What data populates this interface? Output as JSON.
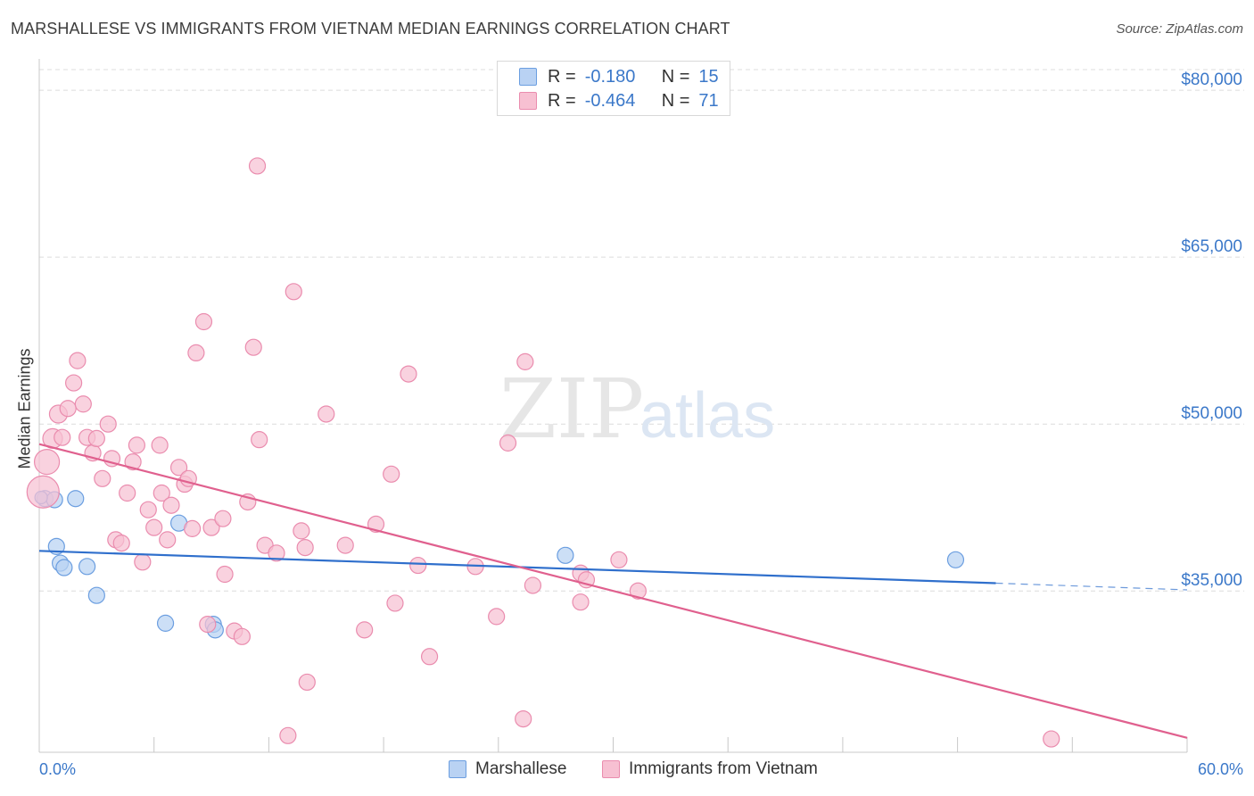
{
  "header": {
    "title": "MARSHALLESE VS IMMIGRANTS FROM VIETNAM MEDIAN EARNINGS CORRELATION CHART",
    "source": "Source: ZipAtlas.com"
  },
  "legend_top": {
    "rows": [
      {
        "r_label": "R =",
        "r_value": "-0.180",
        "n_label": "N =",
        "n_value": "15"
      },
      {
        "r_label": "R =",
        "r_value": "-0.464",
        "n_label": "N =",
        "n_value": "71"
      }
    ]
  },
  "legend_bottom": {
    "items": [
      "Marshallese",
      "Immigrants from Vietnam"
    ]
  },
  "watermark": {
    "part1": "ZIP",
    "part2": "atlas"
  },
  "colors": {
    "blue_fill": "#b9d2f3",
    "blue_stroke": "#6b9ee0",
    "blue_line": "#2f6fcc",
    "pink_fill": "#f7c0d2",
    "pink_stroke": "#ea8cae",
    "pink_line": "#e0608e",
    "axis_text": "#3b78c9",
    "grid": "#dcdcdc"
  },
  "chart_data": {
    "type": "scatter",
    "title": "MARSHALLESE VS IMMIGRANTS FROM VIETNAM MEDIAN EARNINGS CORRELATION CHART",
    "xlabel": "",
    "ylabel": "Median Earnings",
    "xlim": [
      0,
      60
    ],
    "ylim": [
      20500,
      82500
    ],
    "x_tick_labels": [
      "0.0%",
      "60.0%"
    ],
    "y_ticks": [
      35000,
      50000,
      65000,
      80000
    ],
    "y_tick_labels": [
      "$35,000",
      "$50,000",
      "$65,000",
      "$80,000"
    ],
    "grid": true,
    "legend_position": "bottom",
    "series": [
      {
        "name": "Marshallese",
        "color": "blue",
        "r": "-0.180",
        "n": "15",
        "trend": {
          "x0": 0,
          "y0": 38600,
          "x1": 50.0,
          "y1": 35700,
          "dash_to_x": 60,
          "dash_to_y": 35100
        },
        "points": [
          {
            "x": 0.3,
            "y": 43300,
            "s": 9
          },
          {
            "x": 0.8,
            "y": 43200,
            "s": 9
          },
          {
            "x": 1.9,
            "y": 43300,
            "s": 9
          },
          {
            "x": 0.9,
            "y": 39000,
            "s": 9
          },
          {
            "x": 1.1,
            "y": 37500,
            "s": 9
          },
          {
            "x": 1.3,
            "y": 37100,
            "s": 9
          },
          {
            "x": 2.5,
            "y": 37200,
            "s": 9
          },
          {
            "x": 3.0,
            "y": 34600,
            "s": 9
          },
          {
            "x": 7.3,
            "y": 41100,
            "s": 9
          },
          {
            "x": 6.6,
            "y": 32100,
            "s": 9
          },
          {
            "x": 9.1,
            "y": 32000,
            "s": 9
          },
          {
            "x": 9.2,
            "y": 31500,
            "s": 9
          },
          {
            "x": 27.5,
            "y": 38200,
            "s": 9
          },
          {
            "x": 47.9,
            "y": 37800,
            "s": 9
          },
          {
            "x": 0.1,
            "y": 43400,
            "s": 7
          }
        ]
      },
      {
        "name": "Immigrants from Vietnam",
        "color": "pink",
        "r": "-0.464",
        "n": "71",
        "trend": {
          "x0": 0,
          "y0": 48200,
          "x1": 60,
          "y1": 21800
        },
        "points": [
          {
            "x": 0.2,
            "y": 43900,
            "s": 18
          },
          {
            "x": 0.4,
            "y": 46600,
            "s": 14
          },
          {
            "x": 0.7,
            "y": 48700,
            "s": 11
          },
          {
            "x": 1.0,
            "y": 50900,
            "s": 10
          },
          {
            "x": 1.2,
            "y": 48800,
            "s": 9
          },
          {
            "x": 1.5,
            "y": 51400,
            "s": 9
          },
          {
            "x": 1.8,
            "y": 53700,
            "s": 9
          },
          {
            "x": 2.0,
            "y": 55700,
            "s": 9
          },
          {
            "x": 2.3,
            "y": 51800,
            "s": 9
          },
          {
            "x": 2.5,
            "y": 48800,
            "s": 9
          },
          {
            "x": 2.8,
            "y": 47400,
            "s": 9
          },
          {
            "x": 3.0,
            "y": 48700,
            "s": 9
          },
          {
            "x": 3.3,
            "y": 45100,
            "s": 9
          },
          {
            "x": 3.6,
            "y": 50000,
            "s": 9
          },
          {
            "x": 3.8,
            "y": 46900,
            "s": 9
          },
          {
            "x": 4.0,
            "y": 39600,
            "s": 9
          },
          {
            "x": 4.3,
            "y": 39300,
            "s": 9
          },
          {
            "x": 4.6,
            "y": 43800,
            "s": 9
          },
          {
            "x": 4.9,
            "y": 46600,
            "s": 9
          },
          {
            "x": 5.1,
            "y": 48100,
            "s": 9
          },
          {
            "x": 5.4,
            "y": 37600,
            "s": 9
          },
          {
            "x": 5.7,
            "y": 42300,
            "s": 9
          },
          {
            "x": 6.0,
            "y": 40700,
            "s": 9
          },
          {
            "x": 6.3,
            "y": 48100,
            "s": 9
          },
          {
            "x": 6.4,
            "y": 43800,
            "s": 9
          },
          {
            "x": 6.7,
            "y": 39600,
            "s": 9
          },
          {
            "x": 6.9,
            "y": 42700,
            "s": 9
          },
          {
            "x": 7.3,
            "y": 46100,
            "s": 9
          },
          {
            "x": 7.6,
            "y": 44600,
            "s": 9
          },
          {
            "x": 7.8,
            "y": 45100,
            "s": 9
          },
          {
            "x": 8.0,
            "y": 40600,
            "s": 9
          },
          {
            "x": 8.2,
            "y": 56400,
            "s": 9
          },
          {
            "x": 8.6,
            "y": 59200,
            "s": 9
          },
          {
            "x": 8.8,
            "y": 32000,
            "s": 9
          },
          {
            "x": 9.0,
            "y": 40700,
            "s": 9
          },
          {
            "x": 9.6,
            "y": 41500,
            "s": 9
          },
          {
            "x": 9.7,
            "y": 36500,
            "s": 9
          },
          {
            "x": 10.2,
            "y": 31400,
            "s": 9
          },
          {
            "x": 10.6,
            "y": 30900,
            "s": 9
          },
          {
            "x": 10.9,
            "y": 43000,
            "s": 9
          },
          {
            "x": 11.2,
            "y": 56900,
            "s": 9
          },
          {
            "x": 11.4,
            "y": 73200,
            "s": 9
          },
          {
            "x": 11.5,
            "y": 48600,
            "s": 9
          },
          {
            "x": 11.8,
            "y": 39100,
            "s": 9
          },
          {
            "x": 12.4,
            "y": 38400,
            "s": 9
          },
          {
            "x": 13.0,
            "y": 22000,
            "s": 9
          },
          {
            "x": 13.3,
            "y": 61900,
            "s": 9
          },
          {
            "x": 13.7,
            "y": 40400,
            "s": 9
          },
          {
            "x": 13.9,
            "y": 38900,
            "s": 9
          },
          {
            "x": 14.0,
            "y": 26800,
            "s": 9
          },
          {
            "x": 15.0,
            "y": 50900,
            "s": 9
          },
          {
            "x": 16.0,
            "y": 39100,
            "s": 9
          },
          {
            "x": 17.0,
            "y": 31500,
            "s": 9
          },
          {
            "x": 17.6,
            "y": 41000,
            "s": 9
          },
          {
            "x": 18.4,
            "y": 45500,
            "s": 9
          },
          {
            "x": 18.6,
            "y": 33900,
            "s": 9
          },
          {
            "x": 19.3,
            "y": 54500,
            "s": 9
          },
          {
            "x": 19.8,
            "y": 37300,
            "s": 9
          },
          {
            "x": 20.4,
            "y": 29100,
            "s": 9
          },
          {
            "x": 22.8,
            "y": 37200,
            "s": 9
          },
          {
            "x": 23.9,
            "y": 32700,
            "s": 9
          },
          {
            "x": 24.5,
            "y": 48300,
            "s": 9
          },
          {
            "x": 25.3,
            "y": 23500,
            "s": 9
          },
          {
            "x": 25.4,
            "y": 55600,
            "s": 9
          },
          {
            "x": 25.8,
            "y": 35500,
            "s": 9
          },
          {
            "x": 28.3,
            "y": 36600,
            "s": 9
          },
          {
            "x": 28.3,
            "y": 34000,
            "s": 9
          },
          {
            "x": 28.6,
            "y": 36000,
            "s": 9
          },
          {
            "x": 30.3,
            "y": 37800,
            "s": 9
          },
          {
            "x": 31.3,
            "y": 35000,
            "s": 9
          },
          {
            "x": 52.9,
            "y": 21700,
            "s": 9
          }
        ]
      }
    ]
  }
}
